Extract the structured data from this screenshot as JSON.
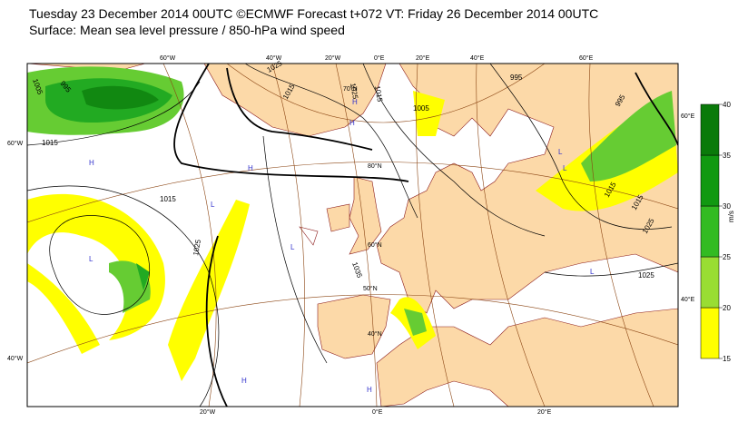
{
  "header": {
    "title": "Tuesday 23 December 2014 00UTC ©ECMWF Forecast t+072 VT: Friday 26 December 2014 00UTC",
    "subtitle": "Surface: Mean sea level pressure / 850-hPa wind speed"
  },
  "graticule_labels": [
    "60°W",
    "40°W",
    "20°W",
    "0°E",
    "20°E",
    "40°E",
    "60°E",
    "60°W",
    "40°W",
    "20°W",
    "0°E",
    "20°E",
    "60°E",
    "40°E",
    "80°N",
    "70°N",
    "60°N",
    "50°N",
    "40°N"
  ],
  "isobar_labels": [
    "1005",
    "995",
    "1025",
    "1015",
    "1025",
    "1015",
    "995",
    "995",
    "1005",
    "1015",
    "1015",
    "1025",
    "1035",
    "1015",
    "1015",
    "1025",
    "1025"
  ],
  "pressure_centres": [
    "H",
    "L",
    "L",
    "H",
    "H",
    "H",
    "L",
    "L",
    "L",
    "H",
    "H",
    "L"
  ],
  "colorbar": {
    "label": "m/s",
    "ticks": [
      15,
      20,
      25,
      30,
      35,
      40
    ],
    "colors": [
      "#ffff00",
      "#99dd33",
      "#33bb22",
      "#119911",
      "#0a7a0a"
    ]
  }
}
